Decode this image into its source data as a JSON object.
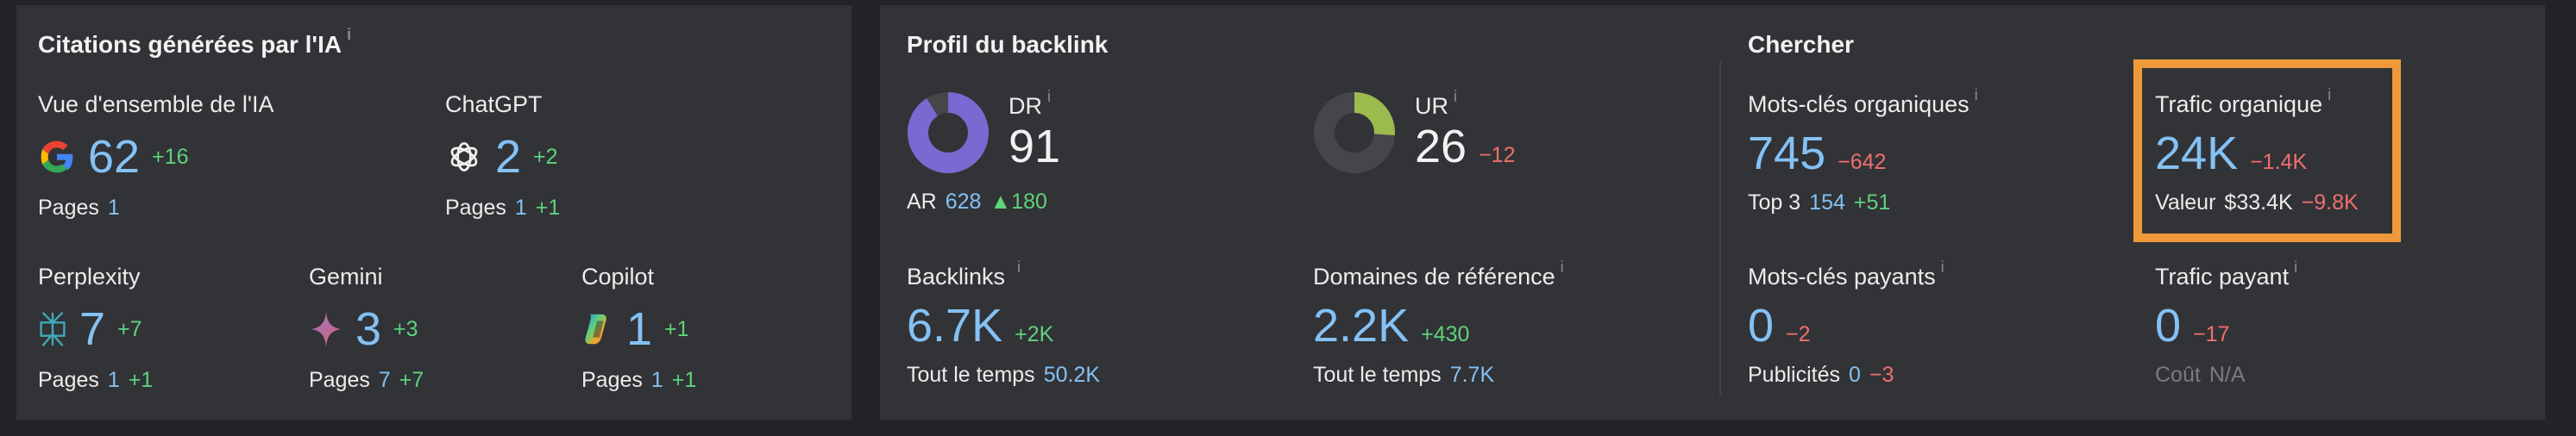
{
  "ai_citations": {
    "title": "Citations générées par l'IA",
    "info": "i",
    "items": [
      {
        "name": "Vue d'ensemble de l'IA",
        "icon": "google-icon",
        "value": "62",
        "delta": "+16",
        "pages_label": "Pages",
        "pages": "1",
        "pages_delta": ""
      },
      {
        "name": "ChatGPT",
        "icon": "chatgpt-icon",
        "value": "2",
        "delta": "+2",
        "pages_label": "Pages",
        "pages": "1",
        "pages_delta": "+1"
      },
      {
        "name": "Perplexity",
        "icon": "perplexity-icon",
        "value": "7",
        "delta": "+7",
        "pages_label": "Pages",
        "pages": "1",
        "pages_delta": "+1"
      },
      {
        "name": "Gemini",
        "icon": "gemini-icon",
        "value": "3",
        "delta": "+3",
        "pages_label": "Pages",
        "pages": "7",
        "pages_delta": "+7"
      },
      {
        "name": "Copilot",
        "icon": "copilot-icon",
        "value": "1",
        "delta": "+1",
        "pages_label": "Pages",
        "pages": "1",
        "pages_delta": "+1"
      }
    ]
  },
  "backlink_profile": {
    "title": "Profil du backlink",
    "dr": {
      "label": "DR",
      "info": "i",
      "value": "91",
      "score": 91,
      "ar_label": "AR",
      "ar_value": "628",
      "ar_delta": "▲180"
    },
    "ur": {
      "label": "UR",
      "info": "i",
      "value": "26",
      "score": 26,
      "delta": "−12"
    },
    "backlinks": {
      "label": "Backlinks",
      "info": "i",
      "value": "6.7K",
      "delta": "+2K",
      "sub_label": "Tout le temps",
      "sub_value": "50.2K"
    },
    "ref_domains": {
      "label": "Domaines de référence",
      "info": "i",
      "value": "2.2K",
      "delta": "+430",
      "sub_label": "Tout le temps",
      "sub_value": "7.7K"
    }
  },
  "search": {
    "title": "Chercher",
    "organic_keywords": {
      "label": "Mots-clés organiques",
      "info": "i",
      "value": "745",
      "delta": "−642",
      "sub_label": "Top 3",
      "sub_value": "154",
      "sub_delta": "+51"
    },
    "organic_traffic": {
      "label": "Trafic organique",
      "info": "i",
      "value": "24K",
      "delta": "−1.4K",
      "sub_label": "Valeur",
      "sub_value": "$33.4K",
      "sub_delta": "−9.8K"
    },
    "paid_keywords": {
      "label": "Mots-clés payants",
      "info": "i",
      "value": "0",
      "delta": "−2",
      "sub_label": "Publicités",
      "sub_value": "0",
      "sub_delta": "−3"
    },
    "paid_traffic": {
      "label": "Trafic payant",
      "info": "i",
      "value": "0",
      "delta": "−17",
      "sub_label": "Coût",
      "sub_value": "N/A"
    }
  },
  "colors": {
    "background": "#232427",
    "card": "#323336",
    "value_blue": "#84c1f5",
    "positive": "#5dd37c",
    "negative": "#f06e6e",
    "dr_purple": "#7b68d1",
    "ur_green": "#9cbb4f",
    "highlight": "#f0993a"
  }
}
